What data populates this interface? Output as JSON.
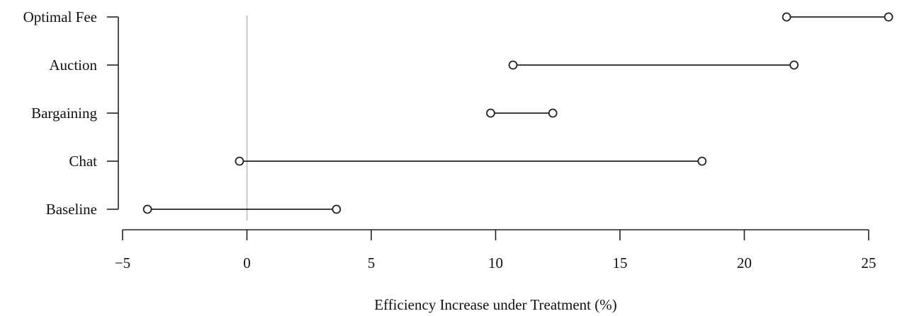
{
  "chart_data": {
    "type": "range",
    "title": "",
    "xlabel": "Efficiency Increase under Treatment (%)",
    "ylabel": "",
    "xlim": [
      -5,
      26
    ],
    "xticks": [
      -5,
      0,
      5,
      10,
      15,
      20,
      25
    ],
    "xtick_labels": [
      "−5",
      "0",
      "5",
      "10",
      "15",
      "20",
      "25"
    ],
    "reference_line_x": 0,
    "categories": [
      "Optimal Fee",
      "Auction",
      "Bargaining",
      "Chat",
      "Baseline"
    ],
    "ranges": [
      {
        "category": "Optimal Fee",
        "low": 21.7,
        "high": 25.8
      },
      {
        "category": "Auction",
        "low": 10.7,
        "high": 22.0
      },
      {
        "category": "Bargaining",
        "low": 9.8,
        "high": 12.3
      },
      {
        "category": "Chat",
        "low": -0.3,
        "high": 18.3
      },
      {
        "category": "Baseline",
        "low": -4.0,
        "high": 3.6
      }
    ],
    "grid": false,
    "colors": {
      "marks": "#222222",
      "reference_line": "#c8c8c8"
    }
  }
}
